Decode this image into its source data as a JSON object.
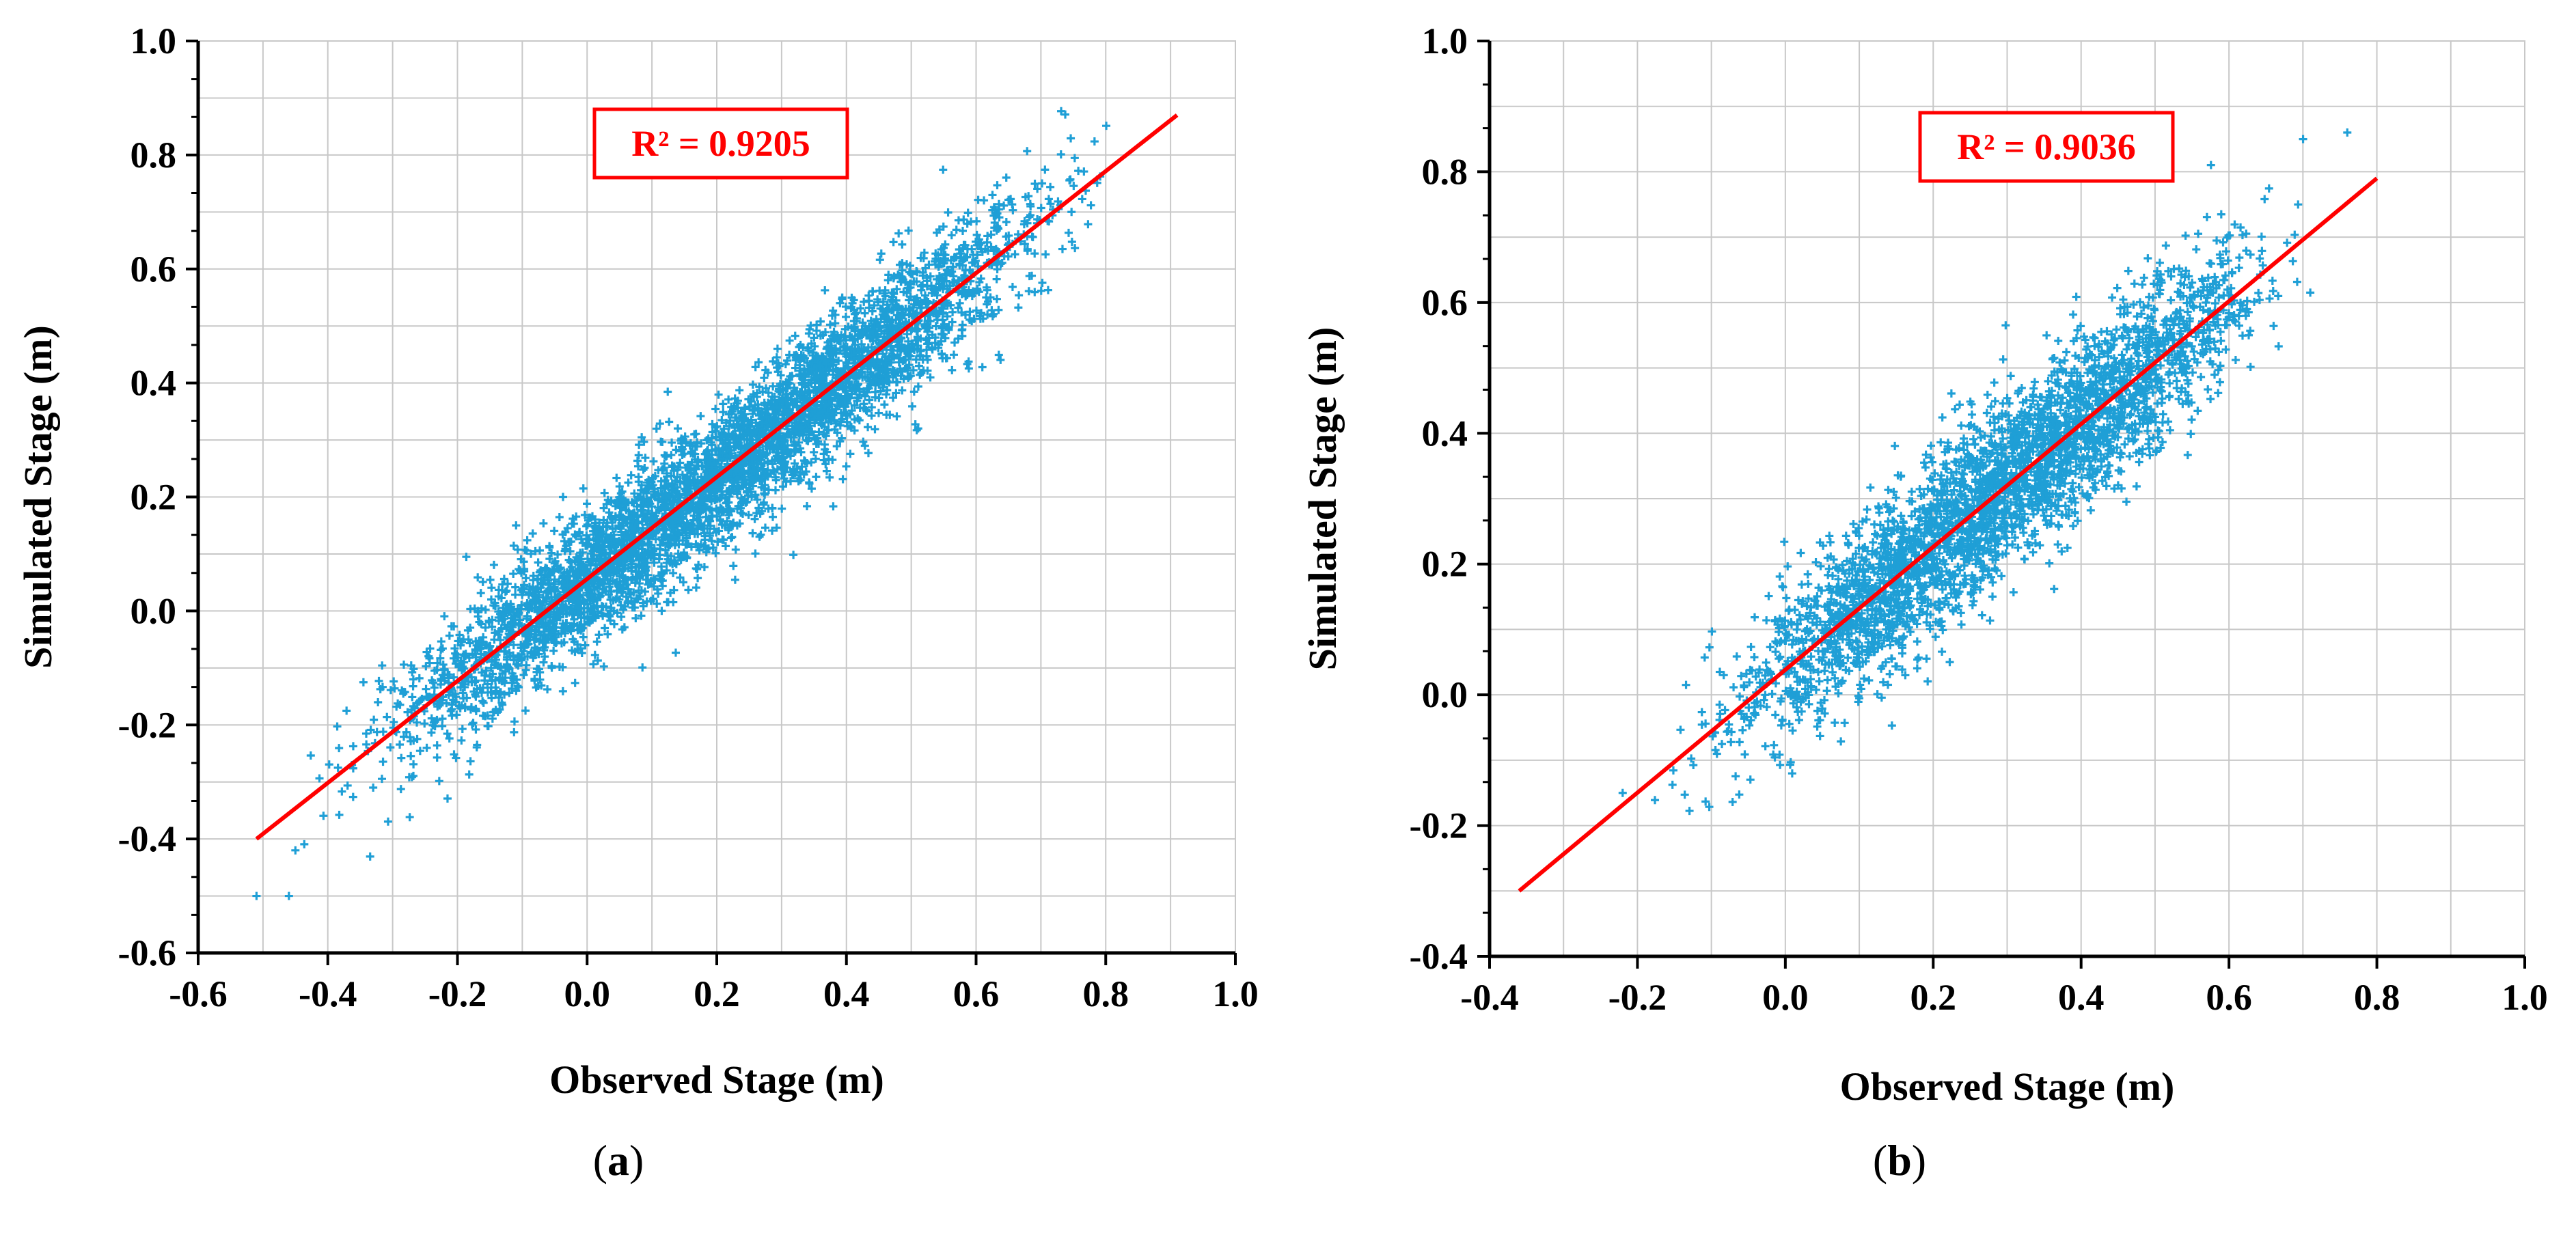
{
  "colors": {
    "points": "#1f9fd6",
    "fit_line": "#ff0000",
    "grid": "#c8c8c8",
    "axis": "#000000"
  },
  "chart_data": [
    {
      "id": "a",
      "type": "scatter",
      "caption_letter": "a",
      "xlabel": "Observed Stage (m)",
      "ylabel": "Simulated Stage (m)",
      "xlim": [
        -0.6,
        1.0
      ],
      "ylim": [
        -0.6,
        1.0
      ],
      "xticks": [
        "-0.6",
        "-0.4",
        "-0.2",
        "0.0",
        "0.2",
        "0.4",
        "0.6",
        "0.8",
        "1.0"
      ],
      "yticks": [
        "-0.6",
        "-0.4",
        "-0.2",
        "0.0",
        "0.2",
        "0.4",
        "0.6",
        "0.8",
        "1.0"
      ],
      "grid": true,
      "annotation": "R² = 0.9205",
      "fit_line": {
        "x": [
          -0.51,
          0.91
        ],
        "y": [
          -0.4,
          0.87
        ]
      },
      "point_cloud": {
        "count": 4200,
        "x_range": [
          -0.51,
          0.91
        ],
        "slope": 0.895,
        "intercept": 0.056,
        "spread": 0.06
      },
      "outliers": [
        {
          "x": -0.51,
          "y": -0.5
        },
        {
          "x": -0.46,
          "y": -0.5
        },
        {
          "x": -0.45,
          "y": -0.42
        },
        {
          "x": -0.33,
          "y": -0.31
        }
      ]
    },
    {
      "id": "b",
      "type": "scatter",
      "caption_letter": "b",
      "xlabel": "Observed Stage (m)",
      "ylabel": "Simulated Stage (m)",
      "xlim": [
        -0.4,
        1.0
      ],
      "ylim": [
        -0.4,
        1.0
      ],
      "xticks": [
        "-0.4",
        "-0.2",
        "0.0",
        "0.2",
        "0.4",
        "0.6",
        "0.8",
        "1.0"
      ],
      "yticks": [
        "-0.4",
        "-0.2",
        "0.0",
        "0.2",
        "0.4",
        "0.6",
        "0.8",
        "1.0"
      ],
      "grid": true,
      "annotation": "R² = 0.9036",
      "fit_line": {
        "x": [
          -0.36,
          0.8
        ],
        "y": [
          -0.3,
          0.79
        ]
      },
      "point_cloud": {
        "count": 3200,
        "x_range": [
          -0.22,
          0.78
        ],
        "slope": 0.94,
        "intercept": 0.04,
        "spread": 0.065
      },
      "outliers": [
        {
          "x": 0.76,
          "y": 0.86
        },
        {
          "x": -0.22,
          "y": -0.15
        }
      ]
    }
  ]
}
